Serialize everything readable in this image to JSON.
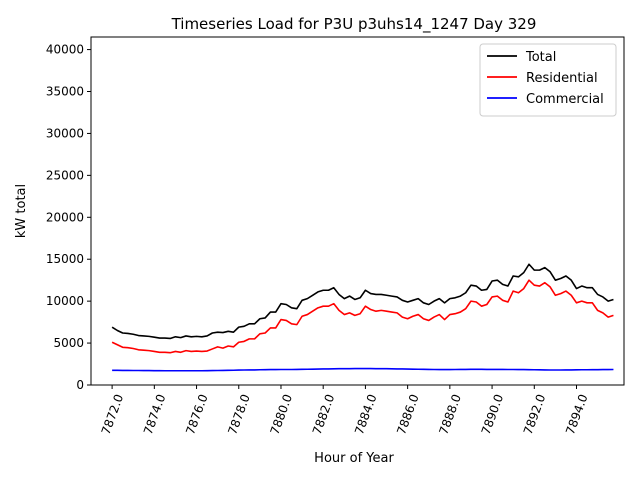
{
  "chart_data": {
    "type": "line",
    "title": "Timeseries Load for P3U p3uhs14_1247  Day 329",
    "xlabel": "Hour of Year",
    "ylabel": "kW total",
    "xlim": [
      7871.0,
      7896.25
    ],
    "ylim": [
      0,
      41500
    ],
    "xticks": [
      7872,
      7874,
      7876,
      7878,
      7880,
      7882,
      7884,
      7886,
      7888,
      7890,
      7892,
      7894
    ],
    "xtick_labels": [
      "7872.0",
      "7874.0",
      "7876.0",
      "7878.0",
      "7880.0",
      "7882.0",
      "7884.0",
      "7886.0",
      "7888.0",
      "7890.0",
      "7892.0",
      "7894.0"
    ],
    "yticks": [
      0,
      5000,
      10000,
      15000,
      20000,
      25000,
      30000,
      35000,
      40000
    ],
    "ytick_labels": [
      "0",
      "5000",
      "10000",
      "15000",
      "20000",
      "25000",
      "30000",
      "35000",
      "40000"
    ],
    "legend_position": "top-right",
    "x_start": 7872.0,
    "x_step": 0.25,
    "series": [
      {
        "name": "Total",
        "color": "#000000",
        "values": [
          6900,
          6500,
          6200,
          6150,
          6050,
          5900,
          5850,
          5800,
          5700,
          5600,
          5600,
          5550,
          5750,
          5650,
          5850,
          5750,
          5800,
          5750,
          5850,
          6200,
          6300,
          6250,
          6400,
          6300,
          6900,
          7000,
          7300,
          7300,
          7900,
          8000,
          8700,
          8700,
          9700,
          9600,
          9200,
          9100,
          10100,
          10300,
          10700,
          11100,
          11300,
          11300,
          11600,
          10800,
          10300,
          10600,
          10200,
          10400,
          11300,
          10900,
          10800,
          10800,
          10700,
          10600,
          10500,
          10100,
          9900,
          10100,
          10300,
          9800,
          9600,
          10000,
          10300,
          9800,
          10300,
          10400,
          10600,
          11000,
          11900,
          11800,
          11300,
          11400,
          12400,
          12500,
          12000,
          11800,
          13000,
          12900,
          13400,
          14400,
          13700,
          13700,
          14000,
          13500,
          12500,
          12700,
          13000,
          12500,
          11500,
          11800,
          11600,
          11600,
          10800,
          10500,
          10000,
          10200
        ]
      },
      {
        "name": "Residential",
        "color": "#ff0000",
        "values": [
          5100,
          4800,
          4500,
          4450,
          4350,
          4200,
          4150,
          4100,
          4000,
          3900,
          3900,
          3850,
          4000,
          3900,
          4100,
          4000,
          4050,
          4000,
          4050,
          4300,
          4550,
          4400,
          4650,
          4550,
          5100,
          5200,
          5500,
          5500,
          6100,
          6200,
          6800,
          6800,
          7800,
          7700,
          7300,
          7200,
          8200,
          8400,
          8800,
          9200,
          9400,
          9400,
          9700,
          8900,
          8400,
          8600,
          8300,
          8500,
          9400,
          9000,
          8800,
          8900,
          8800,
          8700,
          8600,
          8100,
          7900,
          8200,
          8400,
          7900,
          7700,
          8100,
          8400,
          7800,
          8400,
          8500,
          8700,
          9100,
          10000,
          9900,
          9400,
          9600,
          10500,
          10600,
          10100,
          9900,
          11200,
          11000,
          11500,
          12500,
          11900,
          11800,
          12200,
          11700,
          10700,
          10900,
          11200,
          10700,
          9800,
          10000,
          9800,
          9800,
          8900,
          8600,
          8100,
          8300
        ]
      },
      {
        "name": "Commercial",
        "color": "#0000ff",
        "values": [
          1750,
          1750,
          1740,
          1740,
          1730,
          1730,
          1720,
          1720,
          1710,
          1710,
          1700,
          1700,
          1700,
          1700,
          1700,
          1700,
          1700,
          1700,
          1710,
          1720,
          1730,
          1740,
          1750,
          1760,
          1780,
          1790,
          1800,
          1800,
          1820,
          1830,
          1840,
          1840,
          1850,
          1850,
          1850,
          1860,
          1870,
          1880,
          1890,
          1900,
          1910,
          1920,
          1930,
          1940,
          1950,
          1950,
          1960,
          1960,
          1960,
          1960,
          1950,
          1950,
          1940,
          1930,
          1920,
          1910,
          1900,
          1890,
          1880,
          1870,
          1860,
          1850,
          1840,
          1840,
          1840,
          1850,
          1860,
          1860,
          1870,
          1870,
          1870,
          1860,
          1860,
          1860,
          1860,
          1850,
          1850,
          1840,
          1840,
          1830,
          1820,
          1810,
          1800,
          1790,
          1790,
          1790,
          1800,
          1800,
          1810,
          1820,
          1820,
          1830,
          1830,
          1840,
          1840,
          1850
        ]
      }
    ]
  }
}
